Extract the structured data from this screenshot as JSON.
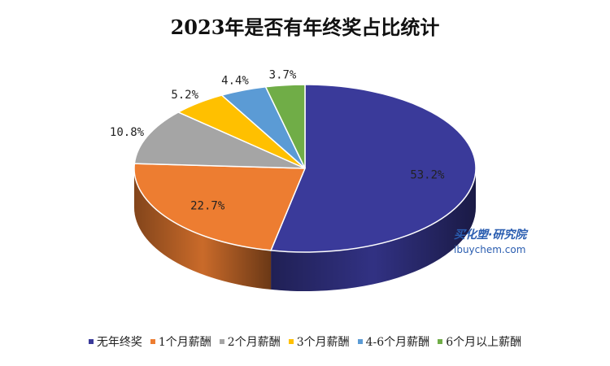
{
  "chart_data": {
    "type": "pie",
    "title": "2023年是否有年终奖占比统计",
    "categories": [
      "无年终奖",
      "1个月薪酬",
      "2个月薪酬",
      "3个月薪酬",
      "4-6个月薪酬",
      "6个月以上薪酬"
    ],
    "values": [
      53.2,
      22.7,
      10.8,
      5.2,
      4.4,
      3.7
    ],
    "value_labels": [
      "53.2%",
      "22.7%",
      "10.8%",
      "5.2%",
      "4.4%",
      "3.7%"
    ],
    "colors": [
      "#3a3a9a",
      "#ed7d31",
      "#a5a5a5",
      "#ffc000",
      "#5b9bd5",
      "#70ad47"
    ],
    "legend_position": "bottom"
  },
  "watermark": {
    "brand": "买化塑·研究院",
    "url": "ibuychem.com"
  }
}
